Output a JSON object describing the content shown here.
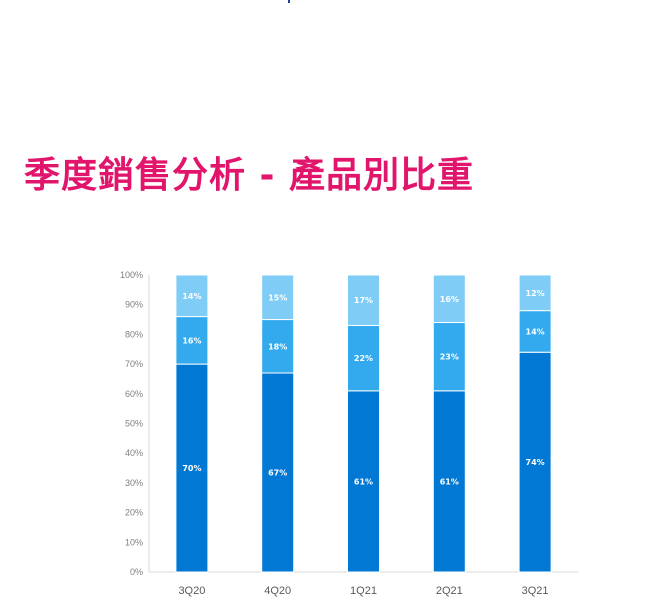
{
  "page": {
    "title": "季度銷售分析 - 產品別比重"
  },
  "chart_data": {
    "type": "bar",
    "stacked": true,
    "categories": [
      "3Q20",
      "4Q20",
      "1Q21",
      "2Q21",
      "3Q21"
    ],
    "series": [
      {
        "values": [
          70,
          67,
          61,
          61,
          74
        ],
        "color": "#0078d4"
      },
      {
        "values": [
          16,
          18,
          22,
          23,
          14
        ],
        "color": "#33aaee"
      },
      {
        "values": [
          14,
          15,
          17,
          16,
          12
        ],
        "color": "#7fcdf7"
      }
    ],
    "data_labels": [
      [
        "70%",
        "67%",
        "61%",
        "61%",
        "74%"
      ],
      [
        "16%",
        "18%",
        "22%",
        "23%",
        "14%"
      ],
      [
        "14%",
        "15%",
        "17%",
        "16%",
        "12%"
      ]
    ],
    "yticks": [
      "0%",
      "10%",
      "20%",
      "30%",
      "40%",
      "50%",
      "60%",
      "70%",
      "80%",
      "90%",
      "100%"
    ],
    "ylim": [
      0,
      100
    ],
    "grid": false,
    "legend": "none"
  }
}
